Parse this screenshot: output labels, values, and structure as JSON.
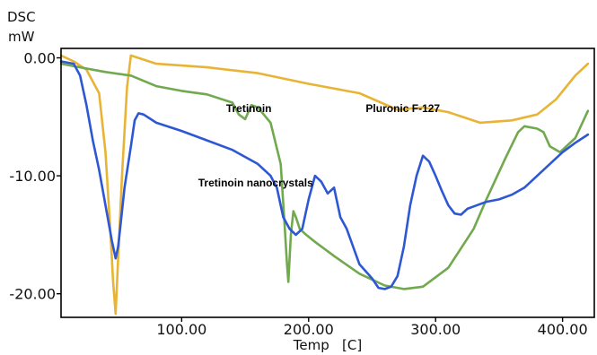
{
  "chart_data": {
    "type": "line",
    "ylabel": "DSC",
    "yunit": "mW",
    "xlabel": "Temp   [C]",
    "xlim": [
      5,
      425
    ],
    "ylim": [
      -22.0,
      0.8
    ],
    "xticks": [
      100,
      200,
      300,
      400
    ],
    "xtick_labels": [
      "100.00",
      "200.00",
      "300.00",
      "400.00"
    ],
    "yticks": [
      0,
      -10,
      -20
    ],
    "ytick_labels": [
      "0.00",
      "-10.00",
      "-20.00"
    ],
    "grid": false,
    "legend": "none",
    "series": [
      {
        "name": "Pluronic F-127",
        "color": "#E8B435",
        "x": [
          5,
          15,
          25,
          35,
          40,
          44,
          46,
          48,
          50,
          53,
          57,
          60,
          80,
          120,
          160,
          200,
          240,
          270,
          290,
          310,
          335,
          360,
          380,
          395,
          410,
          420
        ],
        "y": [
          0.2,
          -0.3,
          -1.0,
          -3.0,
          -8.0,
          -15.0,
          -19.0,
          -21.7,
          -17.0,
          -10.0,
          -2.5,
          0.2,
          -0.5,
          -0.8,
          -1.3,
          -2.2,
          -3.0,
          -4.4,
          -4.2,
          -4.6,
          -5.5,
          -5.3,
          -4.8,
          -3.5,
          -1.5,
          -0.5
        ]
      },
      {
        "name": "Tretinoin",
        "color": "#71A94F",
        "x": [
          5,
          20,
          40,
          60,
          80,
          100,
          120,
          140,
          145,
          150,
          155,
          160,
          170,
          178,
          181,
          183,
          184,
          185,
          186,
          188,
          190,
          193,
          198,
          205,
          220,
          240,
          260,
          275,
          290,
          310,
          330,
          340,
          355,
          365,
          370,
          380,
          385,
          390,
          398,
          410,
          420
        ],
        "y": [
          -0.5,
          -0.8,
          -1.2,
          -1.5,
          -2.4,
          -2.8,
          -3.1,
          -3.8,
          -4.8,
          -5.2,
          -4.0,
          -4.2,
          -5.5,
          -9.0,
          -14.0,
          -17.5,
          -19.0,
          -17.0,
          -15.0,
          -13.0,
          -13.5,
          -14.5,
          -15.0,
          -15.6,
          -16.8,
          -18.3,
          -19.3,
          -19.6,
          -19.4,
          -17.8,
          -14.5,
          -12.0,
          -8.5,
          -6.3,
          -5.8,
          -6.0,
          -6.3,
          -7.5,
          -8.0,
          -6.8,
          -4.5
        ]
      },
      {
        "name": "Tretinoin nanocrystals",
        "color": "#2E57D3",
        "x": [
          5,
          15,
          20,
          25,
          30,
          35,
          40,
          45,
          48,
          50,
          52,
          55,
          60,
          63,
          66,
          70,
          80,
          100,
          120,
          140,
          160,
          170,
          175,
          180,
          185,
          190,
          195,
          200,
          205,
          210,
          215,
          220,
          225,
          230,
          240,
          250,
          255,
          260,
          265,
          270,
          275,
          280,
          285,
          290,
          295,
          300,
          305,
          310,
          315,
          320,
          325,
          330,
          335,
          340,
          350,
          360,
          370,
          380,
          390,
          400,
          410,
          420
        ],
        "y": [
          -0.3,
          -0.5,
          -1.5,
          -4.0,
          -7.0,
          -9.5,
          -12.5,
          -15.5,
          -17.0,
          -16.0,
          -14.0,
          -11.0,
          -7.5,
          -5.3,
          -4.7,
          -4.8,
          -5.5,
          -6.2,
          -7.0,
          -7.8,
          -9.0,
          -10.0,
          -11.0,
          -13.5,
          -14.5,
          -15.0,
          -14.5,
          -12.0,
          -10.0,
          -10.5,
          -11.5,
          -11.0,
          -13.5,
          -14.5,
          -17.5,
          -18.7,
          -19.5,
          -19.6,
          -19.4,
          -18.5,
          -16.0,
          -12.5,
          -10.0,
          -8.3,
          -8.8,
          -10.0,
          -11.3,
          -12.5,
          -13.2,
          -13.3,
          -12.8,
          -12.6,
          -12.4,
          -12.2,
          -12.0,
          -11.6,
          -11.0,
          -10.0,
          -9.0,
          -8.0,
          -7.2,
          -6.5
        ]
      }
    ],
    "annotations": [
      {
        "text": "Tretinoin",
        "x": 135,
        "y": -4.6
      },
      {
        "text": "Pluronic F-127",
        "x": 245,
        "y": -4.6
      },
      {
        "text": "Tretinoin nanocrystals",
        "x": 113,
        "y": -10.9
      }
    ]
  }
}
